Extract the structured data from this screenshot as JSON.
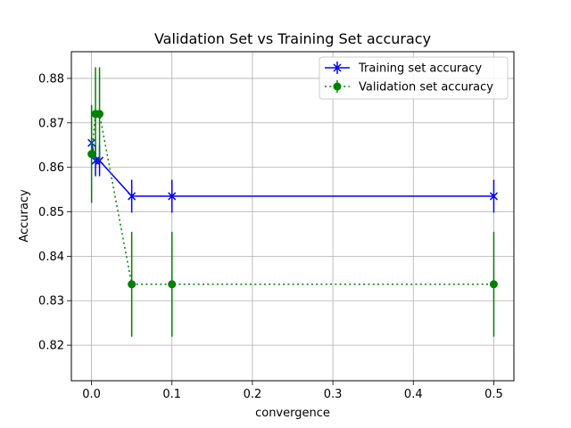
{
  "chart_data": {
    "type": "line",
    "title": "Validation Set vs Training Set accuracy",
    "xlabel": "convergence",
    "ylabel": "Accuracy",
    "xlim": [
      -0.025,
      0.525
    ],
    "ylim": [
      0.812,
      0.886
    ],
    "xticks": [
      0.0,
      0.1,
      0.2,
      0.3,
      0.4,
      0.5
    ],
    "xtick_labels": [
      "0.0",
      "0.1",
      "0.2",
      "0.3",
      "0.4",
      "0.5"
    ],
    "yticks": [
      0.82,
      0.83,
      0.84,
      0.85,
      0.86,
      0.87,
      0.88
    ],
    "ytick_labels": [
      "0.82",
      "0.83",
      "0.84",
      "0.85",
      "0.86",
      "0.87",
      "0.88"
    ],
    "grid": true,
    "legend_position": "upper right",
    "series": [
      {
        "name": "Training set accuracy",
        "color": "#0000ff",
        "marker": "x",
        "linestyle": "solid",
        "x": [
          0.0001,
          0.005,
          0.01,
          0.05,
          0.1,
          0.5
        ],
        "y": [
          0.8655,
          0.8615,
          0.8615,
          0.8535,
          0.8535,
          0.8535
        ],
        "yerr": [
          0.0,
          0.0035,
          0.0035,
          0.0037,
          0.0037,
          0.0037
        ]
      },
      {
        "name": "Validation set accuracy",
        "color": "#008000",
        "marker": "o",
        "linestyle": "dotted",
        "x": [
          0.0001,
          0.005,
          0.01,
          0.05,
          0.1,
          0.5
        ],
        "y": [
          0.863,
          0.872,
          0.872,
          0.8337,
          0.8337,
          0.8337
        ],
        "yerr": [
          0.011,
          0.0105,
          0.0105,
          0.0118,
          0.0118,
          0.0118
        ]
      }
    ]
  }
}
